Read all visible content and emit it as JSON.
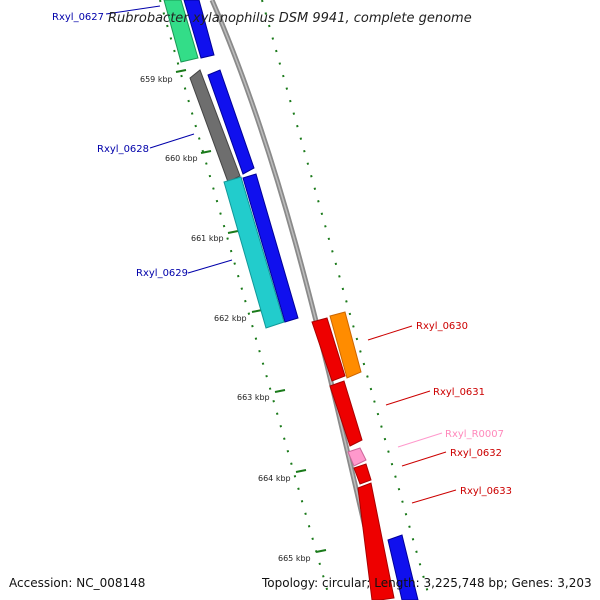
{
  "title": "Rubrobacter xylanophilus DSM 9941, complete genome",
  "footer": {
    "accession": "Accession: NC_008148",
    "summary": "Topology: circular; Length: 3,225,748 bp; Genes: 3,203"
  },
  "kbp_labels": [
    "659 kbp",
    "660 kbp",
    "661 kbp",
    "662 kbp",
    "663 kbp",
    "664 kbp",
    "665 kbp"
  ],
  "gene_labels": {
    "g0627": "Rxyl_0627",
    "g0628": "Rxyl_0628",
    "g0629": "Rxyl_0629",
    "g0630": "Rxyl_0630",
    "g0631": "Rxyl_0631",
    "gR0007": "Rxyl_R0007",
    "g0632": "Rxyl_0632",
    "g0633": "Rxyl_0633"
  },
  "colors": {
    "label_blue": "#0000aa",
    "label_red": "#cc0000",
    "label_pink": "#ff88bb",
    "backbone": "#888888",
    "tick_green": "#1a7a1a"
  }
}
